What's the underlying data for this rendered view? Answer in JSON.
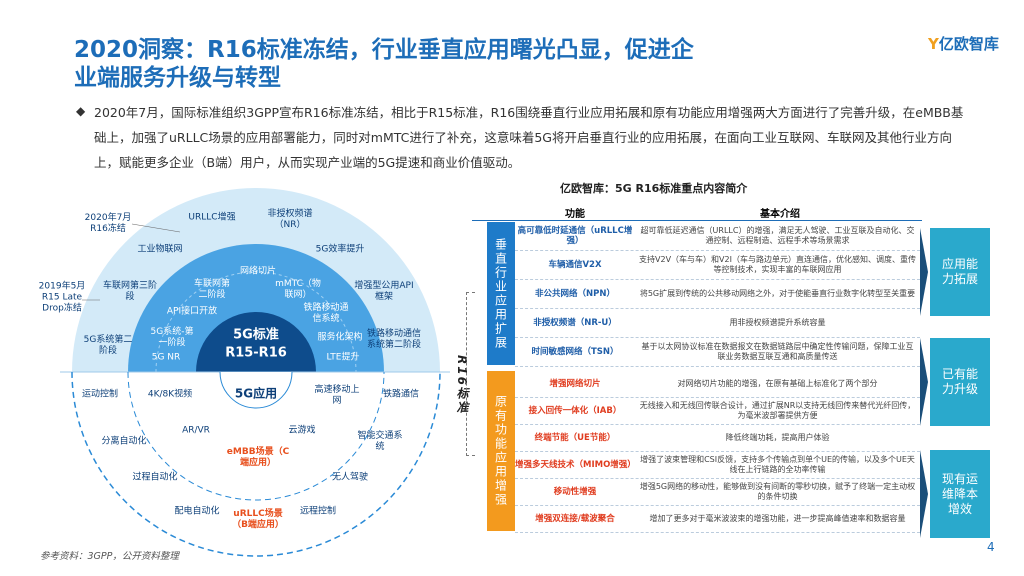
{
  "header": {
    "title_lines": [
      "2020洞察：R16标准冻结，行业垂直应用曙光凸显，促进企",
      "业端服务升级与转型"
    ],
    "logo": "亿欧智库"
  },
  "body": {
    "paragraph": "2020年7月，国际标准组织3GPP宣布R16标准冻结，相比于R15标准，R16围绕垂直行业应用拓展和原有功能应用增强两大方面进行了完善升级，在eMBB基础上，加强了uRLLC场景的应用部署能力，同时对mMTC进行了补充，这意味着5G将开启垂直行业的应用拓展，在面向工业互联网、车联网及其他行业方向上，赋能更多企业（B端）用户，从而实现产业端的5G提速和商业价值驱动。"
  },
  "diagram": {
    "annotations": [
      "2020年7月R16冻结",
      "2019年5月R15 Late Drop冻结"
    ],
    "outer_ring": [
      "URLLC增强",
      "非授权频谱（NR）",
      "工业物联网",
      "5G效率提升",
      "车联网第三阶段",
      "增强型公用API框架",
      "5G系统第二阶段",
      "铁路移动通信系统第二阶段"
    ],
    "middle_ring": [
      "网络切片",
      "车联网第二阶段",
      "mMTC（物联网）",
      "API接口开放",
      "铁路移动通信系统",
      "5G系统-第一阶段",
      "服务化架构",
      "5G NR",
      "LTE提升"
    ],
    "center": [
      "5G标准",
      "R15-R16"
    ],
    "applications": [
      "运动控制",
      "4K/8K视频",
      "5G应用",
      "高速移动上网",
      "铁路通信",
      "AR/VR",
      "云游戏",
      "分离自动化",
      "eMBB场景（C端应用）",
      "智能交通系统",
      "过程自动化",
      "无人驾驶",
      "配电自动化",
      "uRLLC场景（B端应用）",
      "远程控制"
    ]
  },
  "table": {
    "title": "亿欧智库：5G R16标准重点内容简介",
    "side_label": "R16标准",
    "headers": [
      "功能",
      "基本介绍"
    ],
    "groups": [
      {
        "label": "垂直行业应用扩展",
        "rows": [
          [
            "高可靠低时延通信（uRLLC增强）",
            "超可靠低延迟通信（URLLC）的增强，满足无人驾驶、工业互联及自动化、交通控制、远程制造、远程手术等场景需求"
          ],
          [
            "车辆通信V2X",
            "支持V2V（车与车）和V2I（车与路边单元）直连通信，优化感知、调度、重传等控制技术，实现丰富的车联网应用"
          ],
          [
            "非公共网络（NPN）",
            "将5G扩展到传统的公共移动网络之外，对于使能垂直行业数字化转型至关重要"
          ],
          [
            "非授权频谱（NR-U）",
            "用非授权频谱提升系统容量"
          ],
          [
            "时间敏感网络（TSN）",
            "基于以太网协议标准在数据报文在数据链路层中确定性传输问题，保障工业互联业务数据互联互通和高质量传送"
          ]
        ]
      },
      {
        "label": "原有功能应用增强",
        "rows": [
          [
            "增强网络切片",
            "对网络切片功能的增强，在原有基础上标准化了两个部分"
          ],
          [
            "接入回传一体化（IAB）",
            "无线接入和无线回传联合设计，通过扩展NR以支持无线回传来替代光纤回传，为毫米波部署提供方便"
          ],
          [
            "终端节能（UE节能）",
            "降低终端功耗，提高用户体验"
          ],
          [
            "增强多天线技术（MIMO增强）",
            "增强了波束管理和CSI反馈，支持多个传输点到单个UE的传输，以及多个UE天线在上行链路的全功率传输"
          ],
          [
            "移动性增强",
            "增强5G网络的移动性，能够做到没有间断的零秒切换，赋予了终端一定主动权的条件切换"
          ],
          [
            "增强双连接/载波聚合",
            "增加了更多对于毫米波波束的增强功能，进一步提高峰值速率和数据容量"
          ]
        ]
      }
    ],
    "outcomes": [
      "应用能力拓展",
      "已有能力升级",
      "现有运维降本增效"
    ]
  },
  "footer": {
    "source": "参考资料：3GPP，公开资料整理",
    "page": "4"
  }
}
